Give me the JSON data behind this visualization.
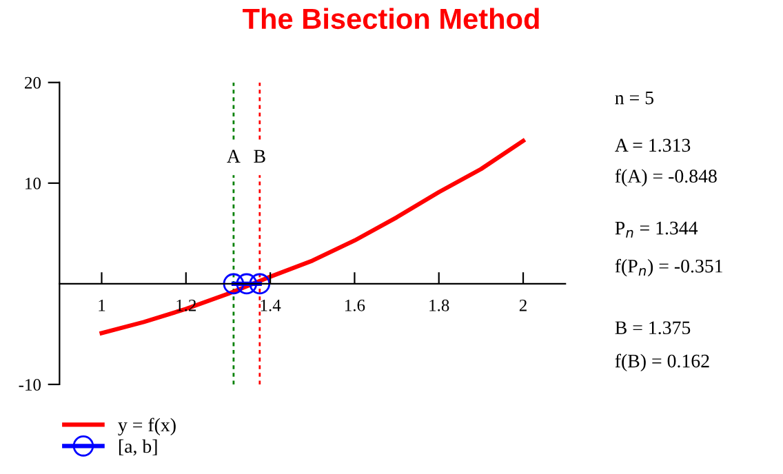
{
  "chart_data": {
    "type": "line",
    "title": "The Bisection Method",
    "x": [
      1,
      1.1,
      1.2,
      1.3,
      1.4,
      1.5,
      1.6,
      1.7,
      1.8,
      1.9,
      2
    ],
    "series": [
      {
        "name": "y = f(x)",
        "color": "#ff0000",
        "marker": "none",
        "values": [
          -4.9,
          -3.8,
          -2.5,
          -1.0,
          0.7,
          2.3,
          4.3,
          6.6,
          9.1,
          11.4,
          14.2
        ]
      },
      {
        "name": "[a, b]",
        "color": "#0000ff",
        "marker": "circle",
        "x": [
          1.313,
          1.344,
          1.375
        ],
        "values": [
          0,
          0,
          0
        ]
      }
    ],
    "xlim": [
      0.9,
      2.1
    ],
    "ylim": [
      -10,
      20
    ],
    "xticks": [
      1,
      1.2,
      1.4,
      1.6,
      1.8,
      2
    ],
    "yticks": [
      -10,
      10,
      20
    ],
    "ref_lines": [
      {
        "axis": "x",
        "value": 1.313,
        "label": "A",
        "color": "#008000",
        "line_style": "dashed"
      },
      {
        "axis": "x",
        "value": 1.375,
        "label": "B",
        "color": "#ff0000",
        "line_style": "dashed"
      }
    ],
    "annotations": [
      "n = 5",
      "A = 1.313",
      "f(A) = -0.848",
      "P$_{n}$ = 1.344",
      "f(P$_{n}$) = -0.351",
      "B = 1.375",
      "f(B) = 0.162"
    ],
    "legend": "bottom left",
    "grid": false
  }
}
